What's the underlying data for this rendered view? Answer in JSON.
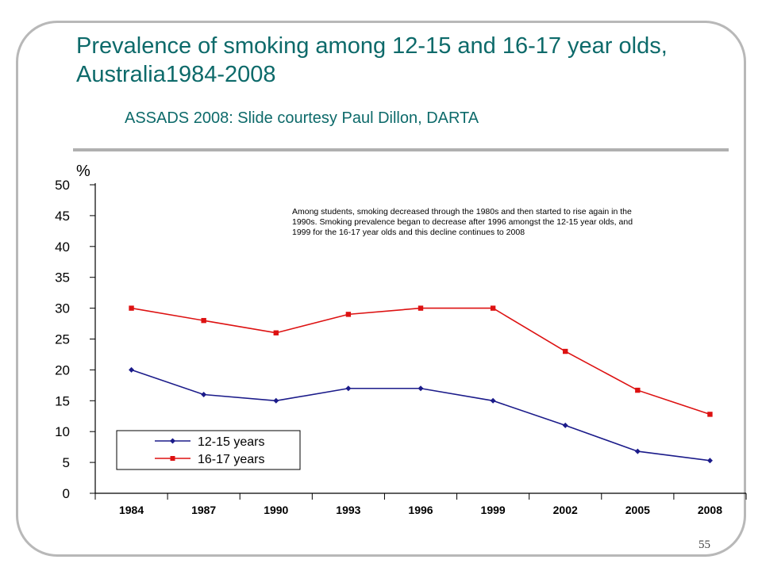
{
  "slide": {
    "title": "Prevalence of smoking among 12-15 and 16-17 year olds, Australia1984-2008",
    "subtitle": "ASSADS 2008: Slide courtesy Paul Dillon, DARTA",
    "page_number": "55"
  },
  "colors": {
    "title": "#0d6a6a",
    "series_12_15": "#1b1b8a",
    "series_16_17": "#dd1111"
  },
  "chart_data": {
    "type": "line",
    "title": "",
    "xlabel": "",
    "ylabel": "%",
    "x": [
      "1984",
      "1987",
      "1990",
      "1993",
      "1996",
      "1999",
      "2002",
      "2005",
      "2008"
    ],
    "ylim": [
      0,
      50
    ],
    "yticks": [
      "0",
      "5",
      "10",
      "15",
      "20",
      "25",
      "30",
      "35",
      "40",
      "45",
      "50"
    ],
    "grid": false,
    "legend_position": "bottom-left",
    "annotation": "Among students, smoking decreased through the 1980s and then started to rise again in the 1990s. Smoking prevalence began to decrease after 1996 amongst the 12-15 year olds, and 1999 for the 16-17 year olds and this decline continues to 2008",
    "series": [
      {
        "name": "12-15 years",
        "marker": "diamond",
        "values": [
          20,
          16,
          15,
          17,
          17,
          15,
          11,
          6.8,
          5.3
        ]
      },
      {
        "name": "16-17 years",
        "marker": "square",
        "values": [
          30,
          28,
          26,
          29,
          30,
          30,
          23,
          16.7,
          12.8
        ]
      }
    ]
  }
}
